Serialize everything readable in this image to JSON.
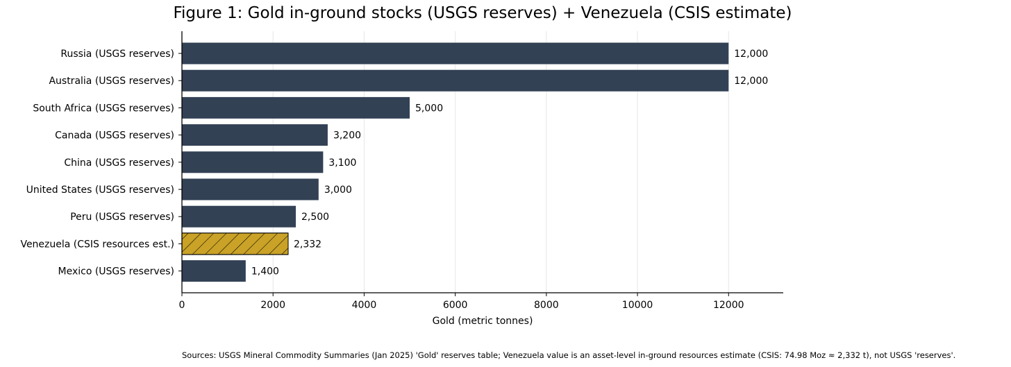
{
  "chart_data": {
    "type": "bar",
    "orientation": "horizontal",
    "title": "Figure 1: Gold in-ground stocks (USGS reserves) + Venezuela (CSIS estimate)",
    "xlabel": "Gold (metric tonnes)",
    "ylabel": "",
    "xlim": [
      0,
      13200
    ],
    "xticks": [
      0,
      2000,
      4000,
      6000,
      8000,
      10000,
      12000
    ],
    "grid": "vertical",
    "categories": [
      "Russia (USGS reserves)",
      "Australia (USGS reserves)",
      "South Africa (USGS reserves)",
      "Canada (USGS reserves)",
      "China (USGS reserves)",
      "United States (USGS reserves)",
      "Peru (USGS reserves)",
      "Venezuela (CSIS resources est.)",
      "Mexico (USGS reserves)"
    ],
    "values": [
      12000,
      12000,
      5000,
      3200,
      3100,
      3000,
      2500,
      2332,
      1400
    ],
    "data_labels": [
      "12,000",
      "12,000",
      "5,000",
      "3,200",
      "3,100",
      "3,000",
      "2,500",
      "2,332",
      "1,400"
    ],
    "highlight_index": 7,
    "colors": {
      "bar": "#334155",
      "highlight": "#c9a227",
      "grid": "#e6e6e6",
      "axis": "#000000"
    }
  },
  "source_note": "Sources: USGS Mineral Commodity Summaries (Jan 2025) 'Gold' reserves table; Venezuela value is an asset-level in-ground resources estimate (CSIS: 74.98 Moz ≈ 2,332 t), not USGS 'reserves'."
}
